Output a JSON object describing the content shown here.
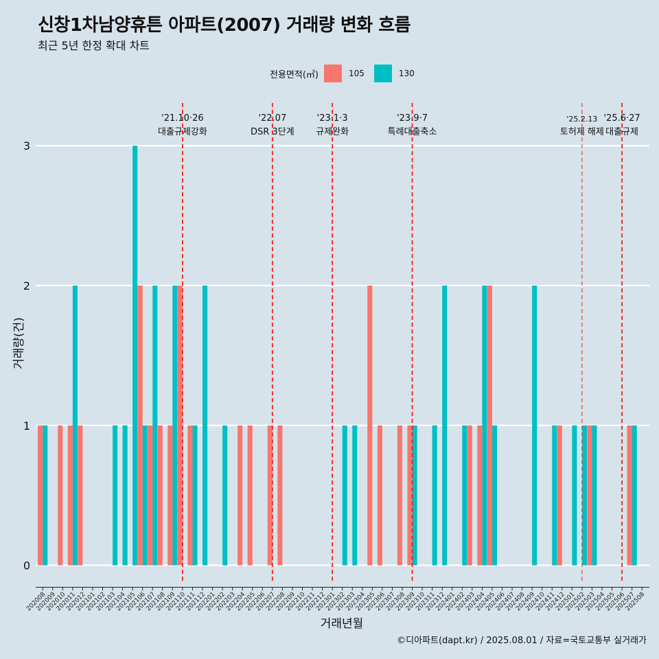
{
  "chart_data": {
    "type": "bar",
    "title": "신창1차남양휴튼 아파트(2007) 거래량 변화 흐름",
    "subtitle": "최근 5년 한정 확대 차트",
    "xlabel": "거래년월",
    "ylabel": "거래량(건)",
    "ylim": [
      -0.13,
      3.33
    ],
    "yticks": [
      "0",
      "1",
      "2",
      "3"
    ],
    "legend_title": "전용면적(㎡)",
    "legend_position": "top",
    "categories": [
      "202008",
      "202009",
      "202010",
      "202011",
      "202012",
      "202101",
      "202102",
      "202103",
      "202104",
      "202105",
      "202106",
      "202107",
      "202108",
      "202109",
      "202110",
      "202111",
      "202112",
      "202201",
      "202202",
      "202203",
      "202204",
      "202205",
      "202206",
      "202207",
      "202208",
      "202209",
      "202210",
      "202211",
      "202212",
      "202301",
      "202302",
      "202303",
      "202304",
      "202305",
      "202306",
      "202307",
      "202308",
      "202309",
      "202310",
      "202311",
      "202312",
      "202401",
      "202402",
      "202403",
      "202404",
      "202405",
      "202406",
      "202407",
      "202408",
      "202409",
      "202410",
      "202411",
      "202412",
      "202501",
      "202502",
      "202503",
      "202504",
      "202505",
      "202506",
      "202507",
      "202508"
    ],
    "series": [
      {
        "name": "105",
        "color": "#f8766d",
        "values": [
          1,
          0,
          1,
          1,
          1,
          0,
          0,
          0,
          0,
          0,
          2,
          1,
          1,
          1,
          2,
          1,
          0,
          0,
          0,
          0,
          1,
          1,
          0,
          1,
          1,
          0,
          0,
          0,
          0,
          0,
          0,
          0,
          0,
          2,
          1,
          0,
          1,
          1,
          0,
          0,
          0,
          0,
          0,
          1,
          1,
          2,
          0,
          0,
          0,
          0,
          0,
          0,
          1,
          0,
          0,
          1,
          0,
          0,
          0,
          1,
          0
        ]
      },
      {
        "name": "130",
        "color": "#00bfc4",
        "values": [
          1,
          0,
          0,
          2,
          0,
          0,
          0,
          1,
          1,
          3,
          1,
          2,
          0,
          2,
          0,
          1,
          2,
          0,
          1,
          0,
          0,
          0,
          0,
          0,
          0,
          0,
          0,
          0,
          0,
          0,
          1,
          1,
          0,
          0,
          0,
          0,
          0,
          1,
          0,
          1,
          2,
          0,
          1,
          0,
          2,
          1,
          0,
          0,
          0,
          2,
          0,
          1,
          0,
          1,
          1,
          1,
          0,
          0,
          0,
          1,
          0
        ]
      }
    ],
    "annotations": [
      {
        "x": "202110",
        "date": "'21.10·26",
        "label": "대출규제강화"
      },
      {
        "x": "202207",
        "date": "'22.07",
        "label": "DSR 3단계"
      },
      {
        "x": "202301",
        "date": "'23.1·3",
        "label": "규제완화"
      },
      {
        "x": "202309",
        "date": "'23.9·7",
        "label": "특례대출축소"
      },
      {
        "x": "202502",
        "date": "'25.2.13",
        "label": "토허제 해제"
      },
      {
        "x": "202506",
        "date": "'25.6·27",
        "label": "대출규제"
      }
    ],
    "grid": true,
    "caption": "©디아파트(dapt.kr) / 2025.08.01 / 자료=국토교통부 실거래가"
  }
}
